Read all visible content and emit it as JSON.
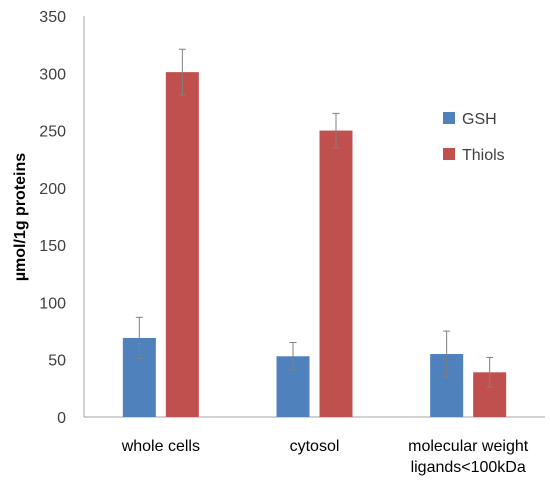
{
  "chart_data": {
    "type": "bar",
    "title": "",
    "xlabel": "",
    "ylabel": "µmol/1g proteins",
    "ylim": [
      0,
      350
    ],
    "yticks": [
      0,
      50,
      100,
      150,
      200,
      250,
      300,
      350
    ],
    "grid": false,
    "legend_position": "right",
    "categories": [
      [
        "whole cells"
      ],
      [
        "cytosol"
      ],
      [
        "molecular weight",
        "ligands<100kDa"
      ]
    ],
    "series": [
      {
        "name": "GSH",
        "color": "#4f81bd",
        "values": [
          69,
          53,
          55
        ],
        "errors": [
          18,
          12,
          20
        ]
      },
      {
        "name": "Thiols",
        "color": "#c0504d",
        "values": [
          301,
          250,
          39
        ],
        "errors": [
          20,
          15,
          13
        ]
      }
    ]
  }
}
